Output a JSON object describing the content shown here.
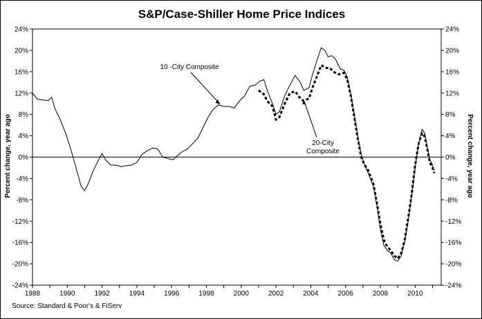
{
  "chart_data": {
    "type": "line",
    "title": "S&P/Case-Shiller Home Price Indices",
    "ylabel_left": "Percent change, year ago",
    "ylabel_right": "Percent change, year ago",
    "source": "Source: Standard & Poor's & FiServ",
    "xlim": [
      1988,
      2011.5
    ],
    "ylim": [
      -24,
      24
    ],
    "x_ticks": [
      1988,
      1990,
      1992,
      1994,
      1996,
      1998,
      2000,
      2002,
      2004,
      2006,
      2008,
      2010
    ],
    "y_ticks": [
      -24,
      -20,
      -16,
      -12,
      -8,
      -4,
      0,
      4,
      8,
      12,
      16,
      20,
      24
    ],
    "x_tick_labels": [
      "1988",
      "1990",
      "1992",
      "1994",
      "1996",
      "1998",
      "2000",
      "2002",
      "2004",
      "2006",
      "2008",
      "2010"
    ],
    "y_tick_labels": [
      "-24%",
      "-20%",
      "-16%",
      "-12%",
      "-8%",
      "-4%",
      "0%",
      "4%",
      "8%",
      "12%",
      "16%",
      "20%",
      "24%"
    ],
    "grid": false,
    "legend": "none",
    "series": [
      {
        "name": "10 -City Composite",
        "style": "solid",
        "color": "#000000",
        "points": [
          [
            1988.0,
            12.0
          ],
          [
            1988.3,
            10.8
          ],
          [
            1988.6,
            10.7
          ],
          [
            1988.9,
            10.6
          ],
          [
            1989.1,
            11.2
          ],
          [
            1989.3,
            9.0
          ],
          [
            1989.6,
            7.0
          ],
          [
            1989.9,
            4.5
          ],
          [
            1990.2,
            1.5
          ],
          [
            1990.5,
            -2.0
          ],
          [
            1990.8,
            -5.5
          ],
          [
            1991.0,
            -6.3
          ],
          [
            1991.2,
            -5.0
          ],
          [
            1991.5,
            -2.5
          ],
          [
            1991.8,
            -0.5
          ],
          [
            1992.0,
            0.7
          ],
          [
            1992.2,
            -0.5
          ],
          [
            1992.5,
            -1.5
          ],
          [
            1992.8,
            -1.5
          ],
          [
            1993.1,
            -1.8
          ],
          [
            1993.4,
            -1.6
          ],
          [
            1993.7,
            -1.5
          ],
          [
            1994.0,
            -1.0
          ],
          [
            1994.3,
            0.5
          ],
          [
            1994.6,
            1.2
          ],
          [
            1994.9,
            1.7
          ],
          [
            1995.2,
            1.5
          ],
          [
            1995.5,
            0.0
          ],
          [
            1995.8,
            -0.3
          ],
          [
            1996.1,
            -0.5
          ],
          [
            1996.3,
            0.2
          ],
          [
            1996.6,
            1.0
          ],
          [
            1996.9,
            1.5
          ],
          [
            1997.2,
            2.5
          ],
          [
            1997.5,
            3.5
          ],
          [
            1997.8,
            5.5
          ],
          [
            1998.1,
            7.5
          ],
          [
            1998.4,
            9.0
          ],
          [
            1998.7,
            9.8
          ],
          [
            1999.0,
            9.5
          ],
          [
            1999.3,
            9.5
          ],
          [
            1999.6,
            9.2
          ],
          [
            1999.9,
            10.5
          ],
          [
            2000.2,
            11.5
          ],
          [
            2000.5,
            13.3
          ],
          [
            2000.8,
            13.5
          ],
          [
            2001.1,
            14.3
          ],
          [
            2001.3,
            14.5
          ],
          [
            2001.5,
            12.5
          ],
          [
            2001.8,
            10.0
          ],
          [
            2002.0,
            8.0
          ],
          [
            2002.2,
            8.5
          ],
          [
            2002.5,
            11.5
          ],
          [
            2002.8,
            13.5
          ],
          [
            2003.1,
            15.3
          ],
          [
            2003.4,
            14.0
          ],
          [
            2003.6,
            12.5
          ],
          [
            2003.9,
            13.0
          ],
          [
            2004.1,
            15.5
          ],
          [
            2004.4,
            18.5
          ],
          [
            2004.6,
            20.5
          ],
          [
            2004.8,
            20.0
          ],
          [
            2005.0,
            18.8
          ],
          [
            2005.2,
            19.0
          ],
          [
            2005.4,
            18.5
          ],
          [
            2005.7,
            16.5
          ],
          [
            2005.9,
            16.3
          ],
          [
            2006.1,
            15.0
          ],
          [
            2006.3,
            12.0
          ],
          [
            2006.5,
            8.0
          ],
          [
            2006.7,
            4.0
          ],
          [
            2006.9,
            0.5
          ],
          [
            2007.1,
            -1.5
          ],
          [
            2007.3,
            -3.0
          ],
          [
            2007.6,
            -5.5
          ],
          [
            2007.8,
            -9.0
          ],
          [
            2008.0,
            -13.5
          ],
          [
            2008.2,
            -16.5
          ],
          [
            2008.4,
            -17.5
          ],
          [
            2008.6,
            -18.0
          ],
          [
            2008.8,
            -19.2
          ],
          [
            2009.0,
            -19.5
          ],
          [
            2009.2,
            -18.5
          ],
          [
            2009.4,
            -16.0
          ],
          [
            2009.6,
            -12.0
          ],
          [
            2009.8,
            -7.5
          ],
          [
            2010.0,
            -2.0
          ],
          [
            2010.2,
            2.5
          ],
          [
            2010.4,
            5.2
          ],
          [
            2010.55,
            4.5
          ],
          [
            2010.7,
            2.0
          ],
          [
            2010.85,
            -0.5
          ],
          [
            2011.0,
            -1.5
          ],
          [
            2011.1,
            -2.5
          ]
        ]
      },
      {
        "name": "20-City Composite",
        "style": "dashed",
        "color": "#000000",
        "points": [
          [
            2001.0,
            12.5
          ],
          [
            2001.3,
            11.8
          ],
          [
            2001.5,
            10.5
          ],
          [
            2001.8,
            9.5
          ],
          [
            2002.0,
            7.0
          ],
          [
            2002.2,
            7.5
          ],
          [
            2002.5,
            10.0
          ],
          [
            2002.8,
            12.0
          ],
          [
            2003.1,
            12.3
          ],
          [
            2003.4,
            11.0
          ],
          [
            2003.6,
            10.5
          ],
          [
            2003.9,
            11.0
          ],
          [
            2004.1,
            13.0
          ],
          [
            2004.4,
            15.5
          ],
          [
            2004.6,
            17.2
          ],
          [
            2004.9,
            16.7
          ],
          [
            2005.1,
            16.7
          ],
          [
            2005.3,
            16.0
          ],
          [
            2005.6,
            15.5
          ],
          [
            2005.9,
            15.8
          ],
          [
            2006.1,
            14.5
          ],
          [
            2006.3,
            11.5
          ],
          [
            2006.5,
            7.5
          ],
          [
            2006.7,
            3.5
          ],
          [
            2006.9,
            0.0
          ],
          [
            2007.1,
            -1.5
          ],
          [
            2007.3,
            -2.5
          ],
          [
            2007.6,
            -5.0
          ],
          [
            2007.8,
            -8.5
          ],
          [
            2008.0,
            -12.5
          ],
          [
            2008.2,
            -15.5
          ],
          [
            2008.4,
            -16.8
          ],
          [
            2008.6,
            -17.5
          ],
          [
            2008.8,
            -18.5
          ],
          [
            2009.0,
            -19.0
          ],
          [
            2009.2,
            -18.0
          ],
          [
            2009.4,
            -15.5
          ],
          [
            2009.6,
            -11.5
          ],
          [
            2009.8,
            -7.0
          ],
          [
            2010.0,
            -1.5
          ],
          [
            2010.2,
            2.5
          ],
          [
            2010.4,
            4.5
          ],
          [
            2010.55,
            3.8
          ],
          [
            2010.7,
            1.5
          ],
          [
            2010.85,
            -1.0
          ],
          [
            2011.0,
            -2.0
          ],
          [
            2011.1,
            -3.0
          ]
        ]
      }
    ],
    "annotations": [
      {
        "text": "10 -City Composite",
        "x": 1998.8,
        "y": 9.9
      },
      {
        "text": "20-City Composite",
        "x": 2003.6,
        "y": 10.7
      }
    ]
  }
}
